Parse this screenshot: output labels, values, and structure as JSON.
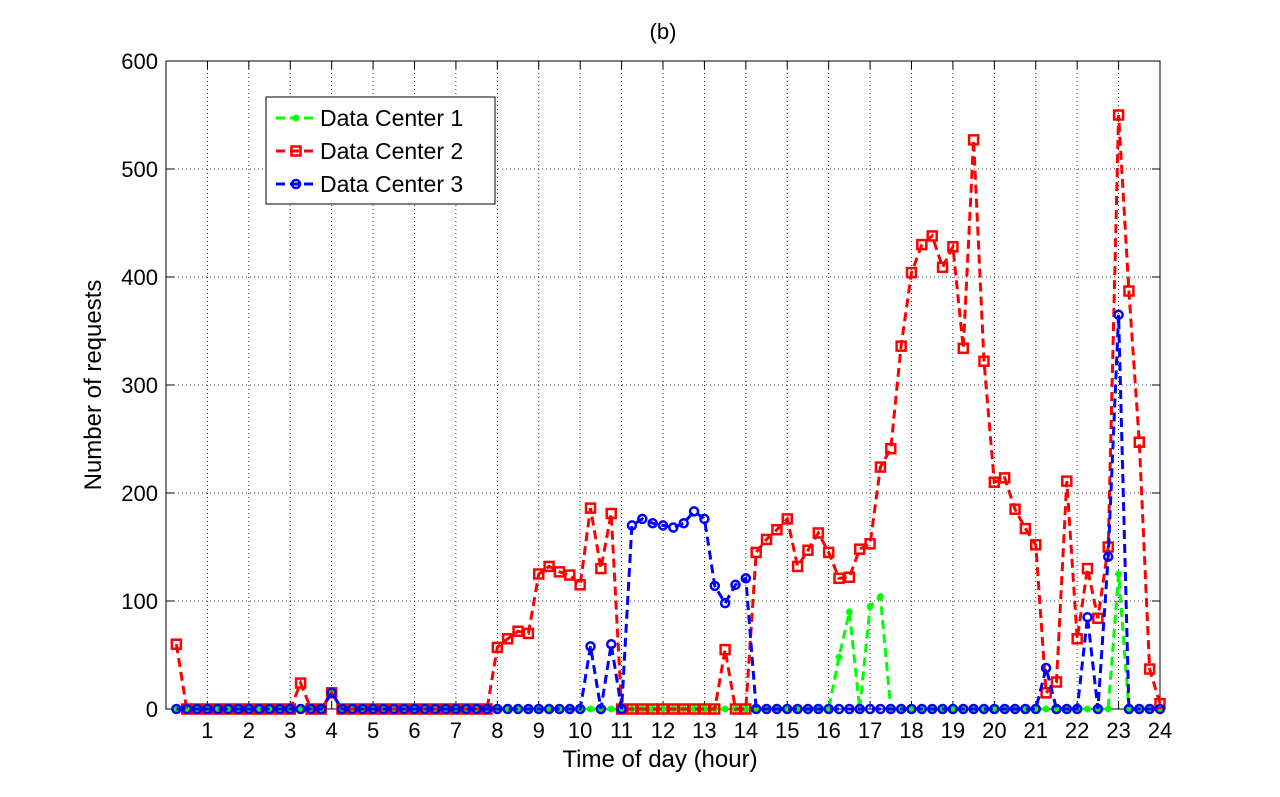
{
  "chart_data": {
    "type": "line",
    "title": "(b)",
    "xlabel": "Time of day (hour)",
    "ylabel": "Number of requests",
    "xlim": [
      0,
      24
    ],
    "ylim": [
      0,
      600
    ],
    "xticks": [
      1,
      2,
      3,
      4,
      5,
      6,
      7,
      8,
      9,
      10,
      11,
      12,
      13,
      14,
      15,
      16,
      17,
      18,
      19,
      20,
      21,
      22,
      23,
      24
    ],
    "yticks": [
      0,
      100,
      200,
      300,
      400,
      500,
      600
    ],
    "grid": true,
    "legend_position": "top-left",
    "x": [
      0.25,
      0.5,
      0.75,
      1,
      1.25,
      1.5,
      1.75,
      2,
      2.25,
      2.5,
      2.75,
      3,
      3.25,
      3.5,
      3.75,
      4,
      4.25,
      4.5,
      4.75,
      5,
      5.25,
      5.5,
      5.75,
      6,
      6.25,
      6.5,
      6.75,
      7,
      7.25,
      7.5,
      7.75,
      8,
      8.25,
      8.5,
      8.75,
      9,
      9.25,
      9.5,
      9.75,
      10,
      10.25,
      10.5,
      10.75,
      11,
      11.25,
      11.5,
      11.75,
      12,
      12.25,
      12.5,
      12.75,
      13,
      13.25,
      13.5,
      13.75,
      14,
      14.25,
      14.5,
      14.75,
      15,
      15.25,
      15.5,
      15.75,
      16,
      16.25,
      16.5,
      16.75,
      17,
      17.25,
      17.5,
      17.75,
      18,
      18.25,
      18.5,
      18.75,
      19,
      19.25,
      19.5,
      19.75,
      20,
      20.25,
      20.5,
      20.75,
      21,
      21.25,
      21.5,
      21.75,
      22,
      22.25,
      22.5,
      22.75,
      23,
      23.25,
      23.5,
      23.75,
      24
    ],
    "series": [
      {
        "name": "Data Center 1",
        "color": "#00ff00",
        "marker": "star",
        "values": [
          0,
          0,
          0,
          0,
          0,
          0,
          0,
          0,
          0,
          0,
          0,
          0,
          0,
          0,
          0,
          15,
          0,
          0,
          0,
          0,
          0,
          0,
          0,
          0,
          0,
          0,
          0,
          0,
          0,
          0,
          0,
          0,
          0,
          0,
          0,
          0,
          0,
          0,
          0,
          0,
          0,
          0,
          0,
          0,
          0,
          0,
          0,
          0,
          0,
          0,
          0,
          0,
          0,
          0,
          0,
          0,
          0,
          0,
          0,
          0,
          0,
          0,
          0,
          0,
          48,
          90,
          0,
          95,
          104,
          0,
          0,
          0,
          0,
          0,
          0,
          0,
          0,
          0,
          0,
          0,
          0,
          0,
          0,
          0,
          0,
          0,
          0,
          0,
          0,
          0,
          0,
          125,
          0,
          0,
          0,
          0
        ]
      },
      {
        "name": "Data Center 2",
        "color": "#ff0000",
        "marker": "square",
        "values": [
          60,
          0,
          0,
          0,
          0,
          0,
          0,
          0,
          0,
          0,
          0,
          0,
          24,
          0,
          0,
          15,
          0,
          0,
          0,
          0,
          0,
          0,
          0,
          0,
          0,
          0,
          0,
          0,
          0,
          0,
          0,
          57,
          65,
          72,
          70,
          125,
          132,
          127,
          124,
          115,
          186,
          130,
          181,
          0,
          0,
          0,
          0,
          0,
          0,
          0,
          0,
          0,
          0,
          55,
          0,
          0,
          145,
          157,
          166,
          176,
          132,
          147,
          163,
          145,
          121,
          122,
          148,
          153,
          224,
          241,
          336,
          404,
          430,
          438,
          409,
          428,
          334,
          527,
          322,
          210,
          214,
          185,
          167,
          152,
          15,
          25,
          211,
          65,
          130,
          84,
          150,
          550,
          387,
          247,
          37,
          5
        ]
      },
      {
        "name": "Data Center 3",
        "color": "#0000ff",
        "marker": "circle",
        "values": [
          0,
          0,
          0,
          0,
          0,
          0,
          0,
          0,
          0,
          0,
          0,
          0,
          0,
          0,
          0,
          15,
          0,
          0,
          0,
          0,
          0,
          0,
          0,
          0,
          0,
          0,
          0,
          0,
          0,
          0,
          0,
          0,
          0,
          0,
          0,
          0,
          0,
          0,
          0,
          0,
          58,
          0,
          60,
          0,
          170,
          176,
          172,
          170,
          168,
          172,
          183,
          176,
          114,
          98,
          115,
          121,
          0,
          0,
          0,
          0,
          0,
          0,
          0,
          0,
          0,
          0,
          0,
          0,
          0,
          0,
          0,
          0,
          0,
          0,
          0,
          0,
          0,
          0,
          0,
          0,
          0,
          0,
          0,
          0,
          38,
          0,
          0,
          0,
          85,
          0,
          141,
          365,
          0,
          0,
          0,
          0
        ]
      }
    ]
  }
}
